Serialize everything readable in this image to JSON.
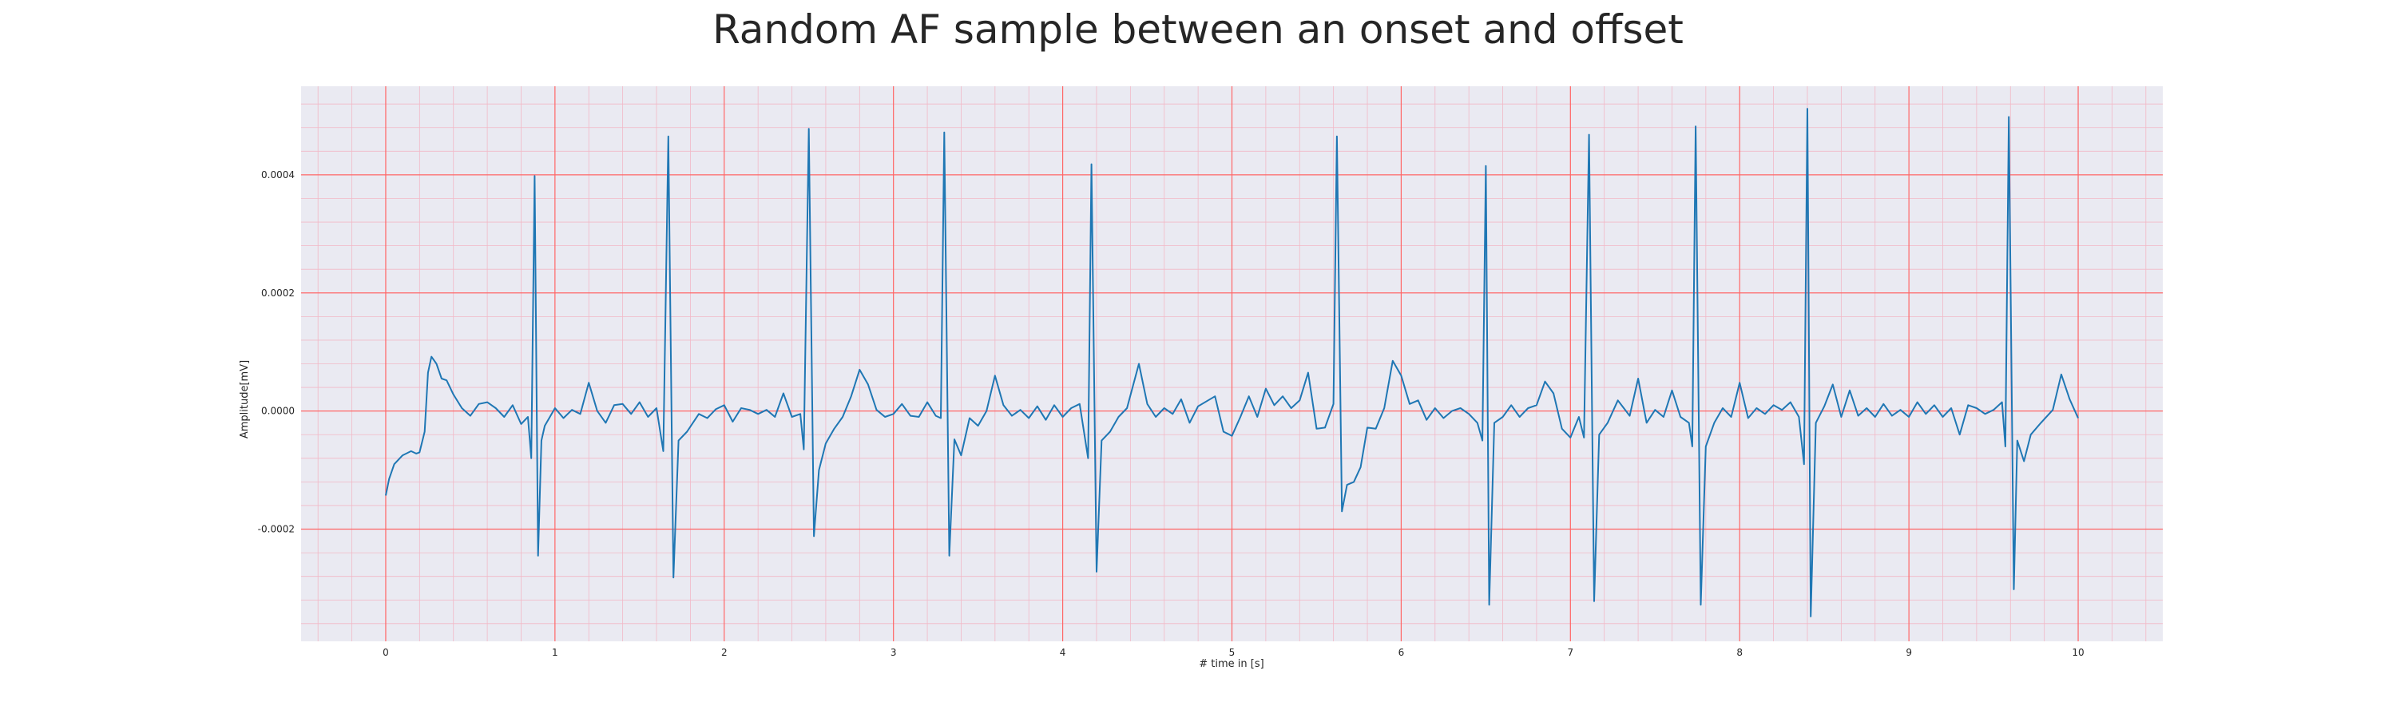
{
  "chart_data": {
    "type": "line",
    "title": "Random AF sample between an onset and offset",
    "xlabel": "# time in [s]",
    "ylabel": "Amplitude[mV]",
    "xlim": [
      -0.5,
      10.5
    ],
    "ylim": [
      -0.00039,
      0.00055
    ],
    "x_ticks": [
      0,
      1,
      2,
      3,
      4,
      5,
      6,
      7,
      8,
      9,
      10
    ],
    "y_ticks": [
      -0.0002,
      0.0,
      0.0002,
      0.0004
    ],
    "x_tick_labels": [
      "0",
      "1",
      "2",
      "3",
      "4",
      "5",
      "6",
      "7",
      "8",
      "9",
      "10"
    ],
    "y_tick_labels": [
      "-0.0002",
      "0.0000",
      "0.0002",
      "0.0004"
    ],
    "grid": true,
    "minor_grid": true,
    "legend": "none",
    "colors": {
      "line": "#1f77b4",
      "background": "#eaeaf2",
      "major_grid": "#ff6666",
      "minor_grid": "#f2b8c6",
      "text": "#262626"
    },
    "series": [
      {
        "values": [
          [
            0.0,
            -0.000143
          ],
          [
            0.02,
            -0.000115
          ],
          [
            0.05,
            -9e-05
          ],
          [
            0.1,
            -7.5e-05
          ],
          [
            0.15,
            -6.8e-05
          ],
          [
            0.18,
            -7.2e-05
          ],
          [
            0.2,
            -7e-05
          ],
          [
            0.23,
            -3.5e-05
          ],
          [
            0.25,
            6.5e-05
          ],
          [
            0.27,
            9.2e-05
          ],
          [
            0.3,
            8e-05
          ],
          [
            0.33,
            5.5e-05
          ],
          [
            0.36,
            5.2e-05
          ],
          [
            0.4,
            2.8e-05
          ],
          [
            0.45,
            5e-06
          ],
          [
            0.5,
            -8e-06
          ],
          [
            0.55,
            1.2e-05
          ],
          [
            0.6,
            1.5e-05
          ],
          [
            0.65,
            5e-06
          ],
          [
            0.7,
            -1e-05
          ],
          [
            0.75,
            1e-05
          ],
          [
            0.8,
            -2.2e-05
          ],
          [
            0.84,
            -1e-05
          ],
          [
            0.86,
            -8e-05
          ],
          [
            0.88,
            0.000398
          ],
          [
            0.9,
            -0.000245
          ],
          [
            0.92,
            -5e-05
          ],
          [
            0.94,
            -2.5e-05
          ],
          [
            1.0,
            5e-06
          ],
          [
            1.05,
            -1.2e-05
          ],
          [
            1.1,
            2e-06
          ],
          [
            1.15,
            -5e-06
          ],
          [
            1.2,
            4.8e-05
          ],
          [
            1.25,
            0.0
          ],
          [
            1.3,
            -2e-05
          ],
          [
            1.35,
            1e-05
          ],
          [
            1.4,
            1.2e-05
          ],
          [
            1.45,
            -5e-06
          ],
          [
            1.5,
            1.5e-05
          ],
          [
            1.55,
            -1e-05
          ],
          [
            1.6,
            5e-06
          ],
          [
            1.64,
            -6.8e-05
          ],
          [
            1.67,
            0.000465
          ],
          [
            1.7,
            -0.000282
          ],
          [
            1.73,
            -5e-05
          ],
          [
            1.78,
            -3.5e-05
          ],
          [
            1.85,
            -5e-06
          ],
          [
            1.9,
            -1.2e-05
          ],
          [
            1.95,
            3e-06
          ],
          [
            2.0,
            1e-05
          ],
          [
            2.05,
            -1.8e-05
          ],
          [
            2.1,
            5e-06
          ],
          [
            2.15,
            2e-06
          ],
          [
            2.2,
            -5e-06
          ],
          [
            2.25,
            2e-06
          ],
          [
            2.3,
            -1e-05
          ],
          [
            2.35,
            3e-05
          ],
          [
            2.4,
            -1e-05
          ],
          [
            2.45,
            -5e-06
          ],
          [
            2.47,
            -6.5e-05
          ],
          [
            2.5,
            0.000478
          ],
          [
            2.53,
            -0.000212
          ],
          [
            2.56,
            -0.0001
          ],
          [
            2.6,
            -5.5e-05
          ],
          [
            2.65,
            -3e-05
          ],
          [
            2.7,
            -1e-05
          ],
          [
            2.75,
            2.5e-05
          ],
          [
            2.8,
            7e-05
          ],
          [
            2.85,
            4.5e-05
          ],
          [
            2.9,
            2e-06
          ],
          [
            2.95,
            -1e-05
          ],
          [
            3.0,
            -5e-06
          ],
          [
            3.05,
            1.2e-05
          ],
          [
            3.1,
            -8e-06
          ],
          [
            3.15,
            -1e-05
          ],
          [
            3.2,
            1.5e-05
          ],
          [
            3.25,
            -8e-06
          ],
          [
            3.28,
            -1.2e-05
          ],
          [
            3.3,
            0.000472
          ],
          [
            3.33,
            -0.000245
          ],
          [
            3.36,
            -4.8e-05
          ],
          [
            3.4,
            -7.5e-05
          ],
          [
            3.45,
            -1.2e-05
          ],
          [
            3.5,
            -2.5e-05
          ],
          [
            3.55,
            0.0
          ],
          [
            3.6,
            6e-05
          ],
          [
            3.65,
            1e-05
          ],
          [
            3.7,
            -8e-06
          ],
          [
            3.75,
            2e-06
          ],
          [
            3.8,
            -1.2e-05
          ],
          [
            3.85,
            8e-06
          ],
          [
            3.9,
            -1.5e-05
          ],
          [
            3.95,
            1e-05
          ],
          [
            4.0,
            -1e-05
          ],
          [
            4.05,
            5e-06
          ],
          [
            4.1,
            1.2e-05
          ],
          [
            4.15,
            -8e-05
          ],
          [
            4.17,
            0.000418
          ],
          [
            4.2,
            -0.000272
          ],
          [
            4.23,
            -5e-05
          ],
          [
            4.28,
            -3.5e-05
          ],
          [
            4.33,
            -1e-05
          ],
          [
            4.38,
            5e-06
          ],
          [
            4.45,
            8e-05
          ],
          [
            4.5,
            1.2e-05
          ],
          [
            4.55,
            -1e-05
          ],
          [
            4.6,
            5e-06
          ],
          [
            4.65,
            -5e-06
          ],
          [
            4.7,
            2e-05
          ],
          [
            4.75,
            -2e-05
          ],
          [
            4.8,
            8e-06
          ],
          [
            4.9,
            2.5e-05
          ],
          [
            4.95,
            -3.5e-05
          ],
          [
            5.0,
            -4.2e-05
          ],
          [
            5.05,
            -1e-05
          ],
          [
            5.1,
            2.5e-05
          ],
          [
            5.15,
            -1e-05
          ],
          [
            5.2,
            3.8e-05
          ],
          [
            5.25,
            1e-05
          ],
          [
            5.3,
            2.5e-05
          ],
          [
            5.35,
            5e-06
          ],
          [
            5.4,
            1.8e-05
          ],
          [
            5.45,
            6.5e-05
          ],
          [
            5.5,
            -3e-05
          ],
          [
            5.55,
            -2.8e-05
          ],
          [
            5.6,
            1.2e-05
          ],
          [
            5.62,
            0.000465
          ],
          [
            5.65,
            -0.00017
          ],
          [
            5.68,
            -0.000125
          ],
          [
            5.72,
            -0.00012
          ],
          [
            5.76,
            -9.5e-05
          ],
          [
            5.8,
            -2.8e-05
          ],
          [
            5.85,
            -3e-05
          ],
          [
            5.9,
            5e-06
          ],
          [
            5.95,
            8.5e-05
          ],
          [
            6.0,
            6e-05
          ],
          [
            6.05,
            1.2e-05
          ],
          [
            6.1,
            1.8e-05
          ],
          [
            6.15,
            -1.5e-05
          ],
          [
            6.2,
            5e-06
          ],
          [
            6.25,
            -1.2e-05
          ],
          [
            6.3,
            0.0
          ],
          [
            6.35,
            5e-06
          ],
          [
            6.4,
            -5e-06
          ],
          [
            6.45,
            -2e-05
          ],
          [
            6.48,
            -5e-05
          ],
          [
            6.5,
            0.000415
          ],
          [
            6.52,
            -0.000328
          ],
          [
            6.55,
            -2e-05
          ],
          [
            6.6,
            -1e-05
          ],
          [
            6.65,
            1e-05
          ],
          [
            6.7,
            -1e-05
          ],
          [
            6.75,
            5e-06
          ],
          [
            6.8,
            1e-05
          ],
          [
            6.85,
            5e-05
          ],
          [
            6.9,
            3e-05
          ],
          [
            6.95,
            -3e-05
          ],
          [
            7.0,
            -4.5e-05
          ],
          [
            7.05,
            -1e-05
          ],
          [
            7.08,
            -4.5e-05
          ],
          [
            7.11,
            0.000468
          ],
          [
            7.14,
            -0.000322
          ],
          [
            7.17,
            -4e-05
          ],
          [
            7.22,
            -2e-05
          ],
          [
            7.28,
            1.8e-05
          ],
          [
            7.35,
            -8e-06
          ],
          [
            7.4,
            5.5e-05
          ],
          [
            7.45,
            -2e-05
          ],
          [
            7.5,
            2e-06
          ],
          [
            7.55,
            -1e-05
          ],
          [
            7.6,
            3.5e-05
          ],
          [
            7.65,
            -1e-05
          ],
          [
            7.7,
            -2e-05
          ],
          [
            7.72,
            -6e-05
          ],
          [
            7.74,
            0.000482
          ],
          [
            7.77,
            -0.000328
          ],
          [
            7.8,
            -6e-05
          ],
          [
            7.85,
            -2e-05
          ],
          [
            7.9,
            5e-06
          ],
          [
            7.95,
            -1e-05
          ],
          [
            8.0,
            4.8e-05
          ],
          [
            8.05,
            -1.2e-05
          ],
          [
            8.1,
            5e-06
          ],
          [
            8.15,
            -5e-06
          ],
          [
            8.2,
            1e-05
          ],
          [
            8.25,
            2e-06
          ],
          [
            8.3,
            1.5e-05
          ],
          [
            8.35,
            -1e-05
          ],
          [
            8.38,
            -9e-05
          ],
          [
            8.4,
            0.000512
          ],
          [
            8.42,
            -0.000348
          ],
          [
            8.45,
            -2e-05
          ],
          [
            8.5,
            8e-06
          ],
          [
            8.55,
            4.5e-05
          ],
          [
            8.6,
            -1e-05
          ],
          [
            8.65,
            3.5e-05
          ],
          [
            8.7,
            -8e-06
          ],
          [
            8.75,
            5e-06
          ],
          [
            8.8,
            -1e-05
          ],
          [
            8.85,
            1.2e-05
          ],
          [
            8.9,
            -8e-06
          ],
          [
            8.95,
            2e-06
          ],
          [
            9.0,
            -1e-05
          ],
          [
            9.05,
            1.5e-05
          ],
          [
            9.1,
            -5e-06
          ],
          [
            9.15,
            1e-05
          ],
          [
            9.2,
            -1e-05
          ],
          [
            9.25,
            5e-06
          ],
          [
            9.3,
            -4e-05
          ],
          [
            9.35,
            1e-05
          ],
          [
            9.4,
            5e-06
          ],
          [
            9.45,
            -5e-06
          ],
          [
            9.5,
            2e-06
          ],
          [
            9.55,
            1.5e-05
          ],
          [
            9.57,
            -6e-05
          ],
          [
            9.59,
            0.000498
          ],
          [
            9.62,
            -0.000302
          ],
          [
            9.64,
            -5e-05
          ],
          [
            9.68,
            -8.5e-05
          ],
          [
            9.72,
            -4e-05
          ],
          [
            9.78,
            -2e-05
          ],
          [
            9.85,
            2e-06
          ],
          [
            9.9,
            6.2e-05
          ],
          [
            9.95,
            2e-05
          ],
          [
            10.0,
            -1.2e-05
          ]
        ]
      }
    ]
  }
}
